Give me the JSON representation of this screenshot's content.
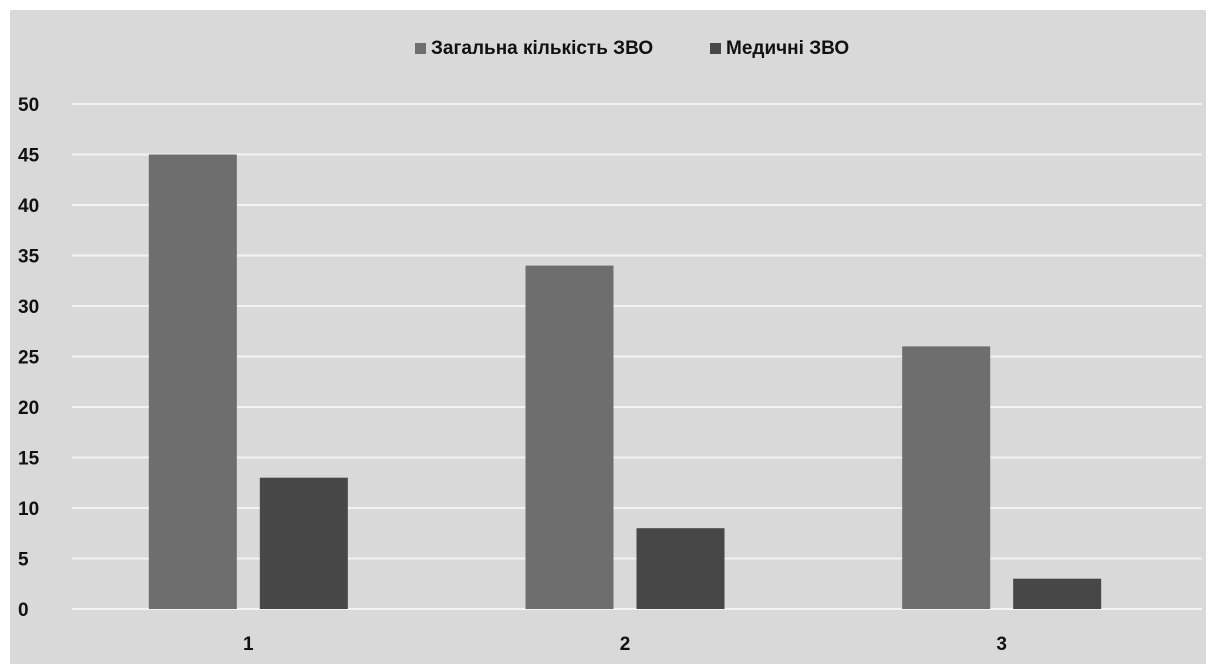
{
  "chart_data": {
    "type": "bar",
    "categories": [
      "1",
      "2",
      "3"
    ],
    "series": [
      {
        "name": "Загальна кількість ЗВО",
        "values": [
          45,
          34,
          26
        ],
        "color": "#6e6e6e"
      },
      {
        "name": "Медичні ЗВО",
        "values": [
          13,
          8,
          3
        ],
        "color": "#474747"
      }
    ],
    "y_ticks": [
      "0",
      "5",
      "10",
      "15",
      "20",
      "25",
      "30",
      "35",
      "40",
      "45",
      "50"
    ],
    "ylim": [
      0,
      50
    ],
    "grid": true,
    "legend_position": "top-center",
    "background": "#d9d9d9",
    "gridline_color": "#f2f2f2"
  }
}
